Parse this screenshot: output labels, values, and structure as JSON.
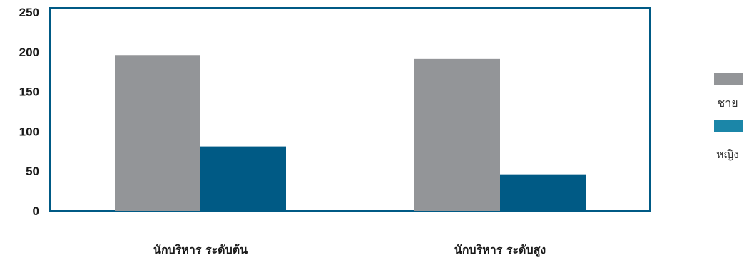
{
  "chart_data": {
    "type": "bar",
    "categories": [
      "นักบริหาร ระดับต้น",
      "นักบริหาร ระดับสูง"
    ],
    "series": [
      {
        "name": "ชาย",
        "values": [
          196,
          191
        ],
        "color": "#939598"
      },
      {
        "name": "หญิง",
        "values": [
          81,
          46
        ],
        "color": "#005a85"
      }
    ],
    "legend_swatch_colors": [
      "#939598",
      "#1b86a8"
    ],
    "ylim": [
      0,
      250
    ],
    "yticks": [
      0,
      50,
      100,
      150,
      200,
      250
    ],
    "grid": false,
    "legend_position": "right",
    "frame_color": "#005a85",
    "title": "",
    "xlabel": "",
    "ylabel": ""
  }
}
